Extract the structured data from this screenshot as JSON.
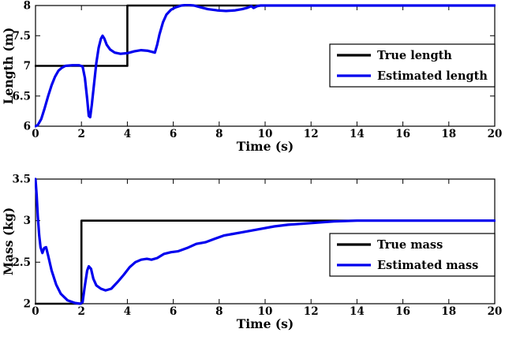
{
  "figure": {
    "background": "#ffffff",
    "line_colors": {
      "true": "#000000",
      "estimated": "#0000ee"
    }
  },
  "chart_data": [
    {
      "type": "line",
      "name": "length-estimation-plot",
      "title": "",
      "xlabel": "Time (s)",
      "ylabel": "Length (m)",
      "xlim": [
        0,
        20
      ],
      "ylim": [
        6,
        8
      ],
      "xticks": [
        0,
        2,
        4,
        6,
        8,
        10,
        12,
        14,
        16,
        18,
        20
      ],
      "xtick_labels": [
        "0",
        "2",
        "4",
        "6",
        "8",
        "10",
        "12",
        "14",
        "16",
        "18",
        "20"
      ],
      "yticks": [
        6,
        6.5,
        7,
        7.5,
        8
      ],
      "ytick_labels": [
        "6",
        "6.5",
        "7",
        "7.5",
        "8"
      ],
      "grid": false,
      "legend": {
        "position": "upper right",
        "entries": [
          {
            "label": "True length",
            "color": "#000000"
          },
          {
            "label": "Estimated length",
            "color": "#0000ee"
          }
        ]
      },
      "series": [
        {
          "name": "True length",
          "color": "#000000",
          "width": 2.6,
          "points": [
            [
              0,
              7
            ],
            [
              4,
              7
            ],
            [
              4,
              8
            ],
            [
              20,
              8
            ]
          ]
        },
        {
          "name": "Estimated length",
          "color": "#0000ee",
          "width": 3.2,
          "points": [
            [
              0,
              6.0
            ],
            [
              0.1,
              6.02
            ],
            [
              0.25,
              6.12
            ],
            [
              0.4,
              6.3
            ],
            [
              0.55,
              6.5
            ],
            [
              0.7,
              6.68
            ],
            [
              0.85,
              6.82
            ],
            [
              1.0,
              6.92
            ],
            [
              1.15,
              6.97
            ],
            [
              1.3,
              7.0
            ],
            [
              1.6,
              7.01
            ],
            [
              1.9,
              7.01
            ],
            [
              2.05,
              6.99
            ],
            [
              2.15,
              6.8
            ],
            [
              2.25,
              6.45
            ],
            [
              2.32,
              6.17
            ],
            [
              2.38,
              6.15
            ],
            [
              2.45,
              6.35
            ],
            [
              2.55,
              6.7
            ],
            [
              2.65,
              7.05
            ],
            [
              2.75,
              7.3
            ],
            [
              2.85,
              7.45
            ],
            [
              2.92,
              7.5
            ],
            [
              3.0,
              7.45
            ],
            [
              3.1,
              7.35
            ],
            [
              3.25,
              7.27
            ],
            [
              3.45,
              7.22
            ],
            [
              3.7,
              7.2
            ],
            [
              4.0,
              7.21
            ],
            [
              4.3,
              7.24
            ],
            [
              4.6,
              7.26
            ],
            [
              4.9,
              7.25
            ],
            [
              5.1,
              7.23
            ],
            [
              5.2,
              7.22
            ],
            [
              5.3,
              7.35
            ],
            [
              5.4,
              7.52
            ],
            [
              5.55,
              7.72
            ],
            [
              5.7,
              7.85
            ],
            [
              5.9,
              7.93
            ],
            [
              6.1,
              7.97
            ],
            [
              6.35,
              8.0
            ],
            [
              6.6,
              8.01
            ],
            [
              6.9,
              8.0
            ],
            [
              7.2,
              7.97
            ],
            [
              7.5,
              7.94
            ],
            [
              7.9,
              7.92
            ],
            [
              8.3,
              7.91
            ],
            [
              8.7,
              7.92
            ],
            [
              9.0,
              7.94
            ],
            [
              9.2,
              7.96
            ],
            [
              9.4,
              7.99
            ],
            [
              9.5,
              7.96
            ],
            [
              9.65,
              7.99
            ],
            [
              9.8,
              8.0
            ],
            [
              10.5,
              8.0
            ],
            [
              11,
              8.0
            ],
            [
              12,
              8.0
            ],
            [
              13,
              8.0
            ],
            [
              14,
              8.0
            ],
            [
              15,
              8.0
            ],
            [
              16,
              8.0
            ],
            [
              17,
              8.0
            ],
            [
              18,
              8.0
            ],
            [
              19,
              8.0
            ],
            [
              20,
              8.0
            ]
          ]
        }
      ]
    },
    {
      "type": "line",
      "name": "mass-estimation-plot",
      "title": "",
      "xlabel": "Time (s)",
      "ylabel": "Mass (kg)",
      "xlim": [
        0,
        20
      ],
      "ylim": [
        2,
        3.5
      ],
      "xticks": [
        0,
        2,
        4,
        6,
        8,
        10,
        12,
        14,
        16,
        18,
        20
      ],
      "xtick_labels": [
        "0",
        "2",
        "4",
        "6",
        "8",
        "10",
        "12",
        "14",
        "16",
        "18",
        "20"
      ],
      "yticks": [
        2,
        2.5,
        3,
        3.5
      ],
      "ytick_labels": [
        "2",
        "2.5",
        "3",
        "3.5"
      ],
      "grid": false,
      "legend": {
        "position": "right",
        "entries": [
          {
            "label": "True mass",
            "color": "#000000"
          },
          {
            "label": "Estimated mass",
            "color": "#0000ee"
          }
        ]
      },
      "series": [
        {
          "name": "True mass",
          "color": "#000000",
          "width": 2.6,
          "points": [
            [
              0,
              2
            ],
            [
              2,
              2
            ],
            [
              2,
              3
            ],
            [
              20,
              3
            ]
          ]
        },
        {
          "name": "Estimated mass",
          "color": "#0000ee",
          "width": 3.2,
          "points": [
            [
              0,
              3.5
            ],
            [
              0.05,
              3.3
            ],
            [
              0.1,
              3.05
            ],
            [
              0.16,
              2.82
            ],
            [
              0.22,
              2.68
            ],
            [
              0.3,
              2.61
            ],
            [
              0.38,
              2.67
            ],
            [
              0.46,
              2.68
            ],
            [
              0.55,
              2.58
            ],
            [
              0.7,
              2.4
            ],
            [
              0.9,
              2.23
            ],
            [
              1.1,
              2.12
            ],
            [
              1.4,
              2.04
            ],
            [
              1.7,
              2.01
            ],
            [
              1.95,
              2.0
            ],
            [
              2.05,
              2.02
            ],
            [
              2.15,
              2.22
            ],
            [
              2.25,
              2.4
            ],
            [
              2.32,
              2.45
            ],
            [
              2.42,
              2.42
            ],
            [
              2.52,
              2.3
            ],
            [
              2.65,
              2.22
            ],
            [
              2.85,
              2.18
            ],
            [
              3.05,
              2.16
            ],
            [
              3.3,
              2.18
            ],
            [
              3.6,
              2.27
            ],
            [
              3.85,
              2.35
            ],
            [
              4.1,
              2.44
            ],
            [
              4.35,
              2.5
            ],
            [
              4.6,
              2.53
            ],
            [
              4.85,
              2.54
            ],
            [
              5.05,
              2.53
            ],
            [
              5.3,
              2.55
            ],
            [
              5.6,
              2.6
            ],
            [
              5.9,
              2.62
            ],
            [
              6.2,
              2.63
            ],
            [
              6.6,
              2.67
            ],
            [
              7.0,
              2.72
            ],
            [
              7.4,
              2.74
            ],
            [
              7.8,
              2.78
            ],
            [
              8.2,
              2.82
            ],
            [
              8.6,
              2.84
            ],
            [
              9.0,
              2.86
            ],
            [
              9.4,
              2.88
            ],
            [
              9.8,
              2.9
            ],
            [
              10.4,
              2.93
            ],
            [
              11.0,
              2.95
            ],
            [
              12.0,
              2.97
            ],
            [
              13.0,
              2.99
            ],
            [
              14.0,
              3.0
            ],
            [
              15.0,
              3.0
            ],
            [
              16.0,
              3.0
            ],
            [
              17.0,
              3.0
            ],
            [
              18.0,
              3.0
            ],
            [
              19.0,
              3.0
            ],
            [
              20.0,
              3.0
            ]
          ]
        }
      ]
    }
  ]
}
